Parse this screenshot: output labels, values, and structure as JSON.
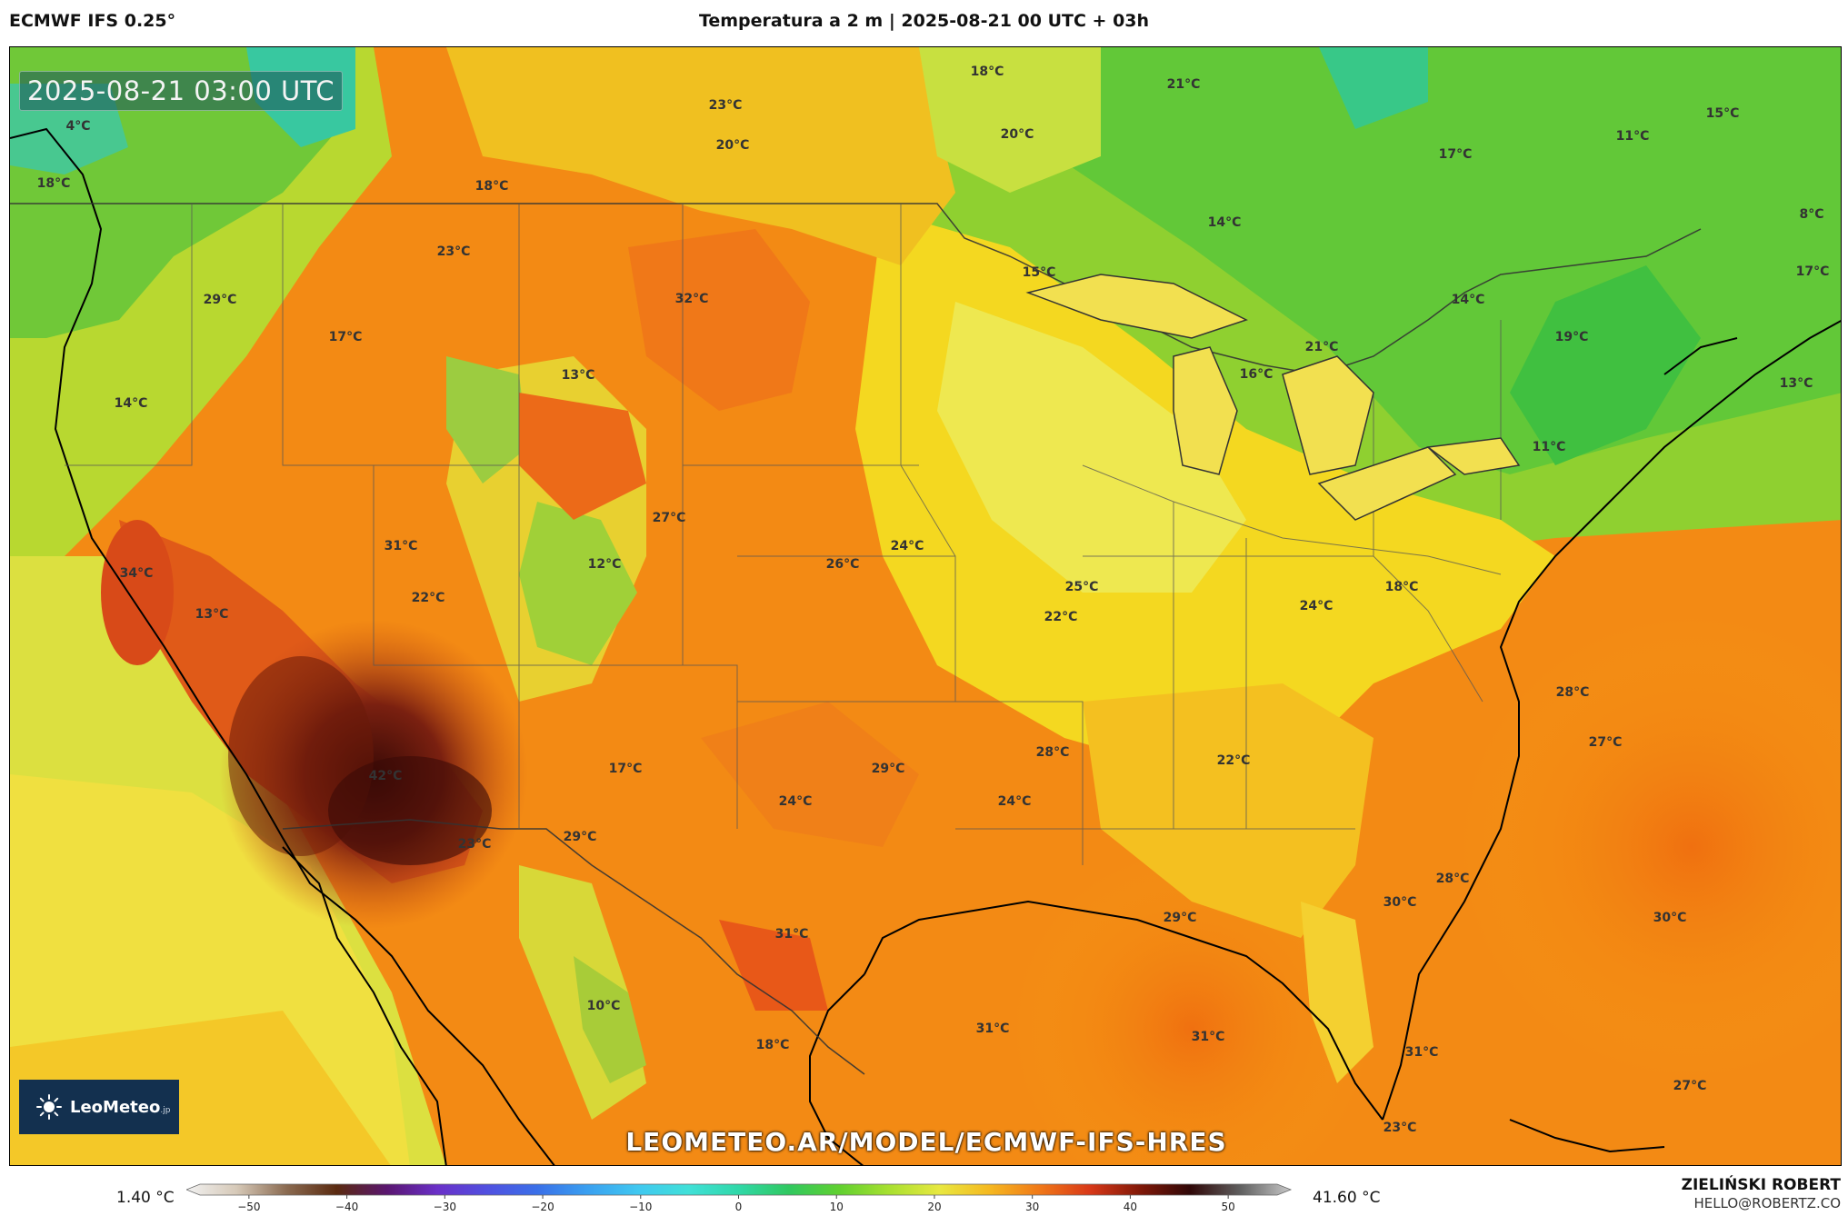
{
  "header": {
    "model": "ECMWF IFS 0.25°",
    "title": "Temperatura a 2 m | 2025-08-21 00 UTC + 03h"
  },
  "map": {
    "timestamp": "2025-08-21 03:00 UTC",
    "url": "LEOMETEO.AR/MODEL/ECMWF-IFS-HRES",
    "logo": {
      "name": "LeoMeteo",
      "suffix": ".jp"
    },
    "labels": [
      "4°C",
      "18°C",
      "18°C",
      "23°C",
      "20°C",
      "18°C",
      "21°C",
      "20°C",
      "17°C",
      "11°C",
      "15°C",
      "8°C",
      "23°C",
      "29°C",
      "32°C",
      "17°C",
      "14°C",
      "15°C",
      "14°C",
      "17°C",
      "13°C",
      "21°C",
      "16°C",
      "13°C",
      "19°C",
      "14°C",
      "11°C",
      "27°C",
      "24°C",
      "31°C",
      "12°C",
      "26°C",
      "34°C",
      "22°C",
      "25°C",
      "22°C",
      "18°C",
      "24°C",
      "13°C",
      "28°C",
      "27°C",
      "28°C",
      "22°C",
      "17°C",
      "29°C",
      "42°C",
      "24°C",
      "24°C",
      "23°C",
      "29°C",
      "28°C",
      "30°C",
      "31°C",
      "29°C",
      "30°C",
      "10°C",
      "31°C",
      "31°C",
      "31°C",
      "18°C",
      "27°C",
      "23°C"
    ]
  },
  "footer": {
    "min_value": "1.40 °C",
    "max_value": "41.60 °C",
    "author": "ZIELIŃSKI ROBERT",
    "email": "HELLO@ROBERTZ.CO"
  },
  "colorbar": {
    "ticks": [
      "−50",
      "−40",
      "−30",
      "−20",
      "−10",
      "0",
      "10",
      "20",
      "30",
      "40",
      "50"
    ],
    "range": [
      -55,
      55
    ],
    "unit": "°C",
    "colors": {
      "stops": [
        [
          -55,
          "#f2f2f2"
        ],
        [
          -50,
          "#d6c9b8"
        ],
        [
          -45,
          "#8a6a50"
        ],
        [
          -40,
          "#5a2a10"
        ],
        [
          -35,
          "#5a1670"
        ],
        [
          -30,
          "#6a30c8"
        ],
        [
          -25,
          "#5050e0"
        ],
        [
          -20,
          "#3a70e8"
        ],
        [
          -15,
          "#3aa0f0"
        ],
        [
          -10,
          "#40c8f0"
        ],
        [
          -5,
          "#40e0d8"
        ],
        [
          0,
          "#30d8a8"
        ],
        [
          5,
          "#30c860"
        ],
        [
          10,
          "#60d030"
        ],
        [
          15,
          "#a8e030"
        ],
        [
          20,
          "#e8e840"
        ],
        [
          25,
          "#f5b820"
        ],
        [
          30,
          "#f07818"
        ],
        [
          35,
          "#d83818"
        ],
        [
          40,
          "#801808"
        ],
        [
          45,
          "#300808"
        ],
        [
          50,
          "#606060"
        ],
        [
          55,
          "#c8c8c8"
        ]
      ]
    }
  }
}
